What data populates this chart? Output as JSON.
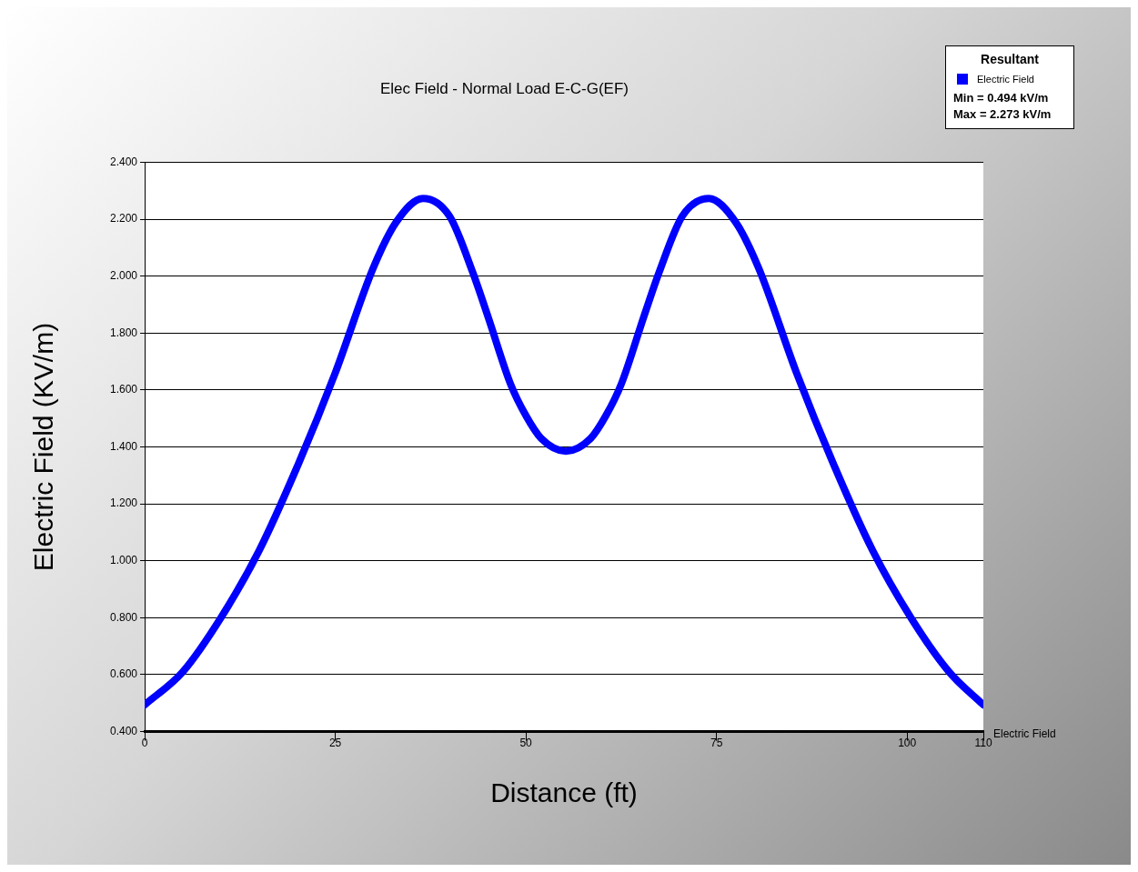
{
  "chart_data": {
    "type": "line",
    "title": "Elec Field - Normal Load E-C-G(EF)",
    "xlabel": "Distance (ft)",
    "ylabel": "Electric Field (KV/m)",
    "legend_title": "Resultant",
    "legend": "top right",
    "grid": "y",
    "marker": "none",
    "line_style": "solid",
    "xlim": [
      0,
      110
    ],
    "xticks": [
      0,
      25,
      50,
      75,
      100,
      110
    ],
    "ylim": [
      0.4,
      2.4
    ],
    "yticks": [
      {
        "value": 0.4,
        "label": "0.400"
      },
      {
        "value": 0.6,
        "label": "0.600"
      },
      {
        "value": 0.8,
        "label": "0.800"
      },
      {
        "value": 1.0,
        "label": "1.000"
      },
      {
        "value": 1.2,
        "label": "1.200"
      },
      {
        "value": 1.4,
        "label": "1.400"
      },
      {
        "value": 1.6,
        "label": "1.600"
      },
      {
        "value": 1.8,
        "label": "1.800"
      },
      {
        "value": 2.0,
        "label": "2.000"
      },
      {
        "value": 2.2,
        "label": "2.200"
      },
      {
        "value": 2.4,
        "label": "2.400"
      }
    ],
    "x": [
      0,
      5,
      10,
      15,
      20,
      25,
      30,
      33,
      36.5,
      40,
      43,
      45,
      48,
      50,
      52,
      55.25,
      58.5,
      60.5,
      62.5,
      65.5,
      67.5,
      70.5,
      74,
      77.5,
      80.5,
      85.5,
      90.5,
      95.5,
      100.5,
      105.5,
      110
    ],
    "series": [
      {
        "name": "Electric Field",
        "color": "#0000ff",
        "values": [
          0.494,
          0.61,
          0.8,
          1.035,
          1.33,
          1.66,
          2.03,
          2.19,
          2.273,
          2.21,
          2.015,
          1.86,
          1.62,
          1.51,
          1.43,
          1.385,
          1.43,
          1.51,
          1.62,
          1.86,
          2.015,
          2.21,
          2.273,
          2.19,
          2.03,
          1.66,
          1.33,
          1.035,
          0.8,
          0.61,
          0.494
        ]
      }
    ],
    "annotations": [
      "Min = 0.494 kV/m",
      "Max = 2.273 kV/m",
      "Electric Field"
    ]
  }
}
